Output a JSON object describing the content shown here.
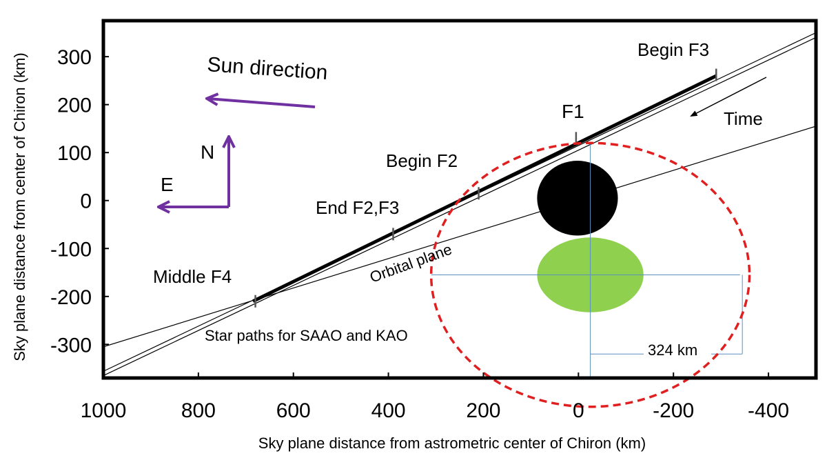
{
  "chart_data": {
    "type": "scatter",
    "xlabel": "Sky plane distance from astrometric center of Chiron (km)",
    "ylabel": "Sky plane distance  from center of Chiron (km)",
    "xlim": [
      1000,
      -500
    ],
    "ylim": [
      -370,
      375
    ],
    "x_axis_reversed": true,
    "grid": false,
    "x_ticks": [
      1000,
      800,
      600,
      400,
      200,
      0,
      -200,
      -400
    ],
    "y_ticks": [
      300,
      200,
      100,
      0,
      -100,
      -200,
      -300
    ],
    "star_path_lines": [
      {
        "x": [
          1000,
          -500
        ],
        "y": [
          -356,
          350
        ]
      },
      {
        "x": [
          1000,
          -500
        ],
        "y": [
          -365,
          340
        ]
      },
      {
        "x": [
          1000,
          -500
        ],
        "y": [
          -305,
          155
        ]
      }
    ],
    "occultation_chord": {
      "x": [
        685,
        -290
      ],
      "y": [
        -210,
        260
      ]
    },
    "chord_ticks": [
      {
        "x": 680,
        "y": -210
      },
      {
        "x": 390,
        "y": -70
      },
      {
        "x": 210,
        "y": 15
      },
      {
        "x": 5,
        "y": 130
      },
      {
        "x": -290,
        "y": 262
      }
    ],
    "chiron_body": {
      "cx": 2,
      "cy": 5,
      "rx": 85,
      "ry": 78,
      "color": "#000000"
    },
    "ring_ellipse": {
      "cx": -25,
      "cy": -155,
      "rx": 112,
      "ry": 78,
      "color": "#8fd04e"
    },
    "dashed_circle": {
      "cx": -25,
      "cy": -155,
      "rx": 335,
      "ry": 275,
      "color": "#e02020"
    },
    "reference_lines": {
      "color": "#5a8fc0",
      "horizontal": {
        "y": -155,
        "x": [
          310,
          -340
        ]
      },
      "vertical": {
        "x": -25,
        "y": [
          -430,
          120
        ]
      },
      "bracket_bottom": {
        "y": -320,
        "x": [
          -25,
          -345
        ]
      },
      "bracket_right": {
        "x": -345,
        "y": [
          -155,
          -320
        ]
      }
    },
    "annotations": {
      "sun_direction": "Sun direction",
      "north": "N",
      "east": "E",
      "time": "Time",
      "begin_f3": "Begin F3",
      "f1": "F1",
      "begin_f2": "Begin F2",
      "end_f2_f3": "End F2,F3",
      "middle_f4": "Middle F4",
      "orbital_plane": "Orbital plane",
      "star_paths": "Star paths for SAAO and KAO",
      "radius_label": "324 km"
    },
    "arrow_color": "#7030a0"
  }
}
